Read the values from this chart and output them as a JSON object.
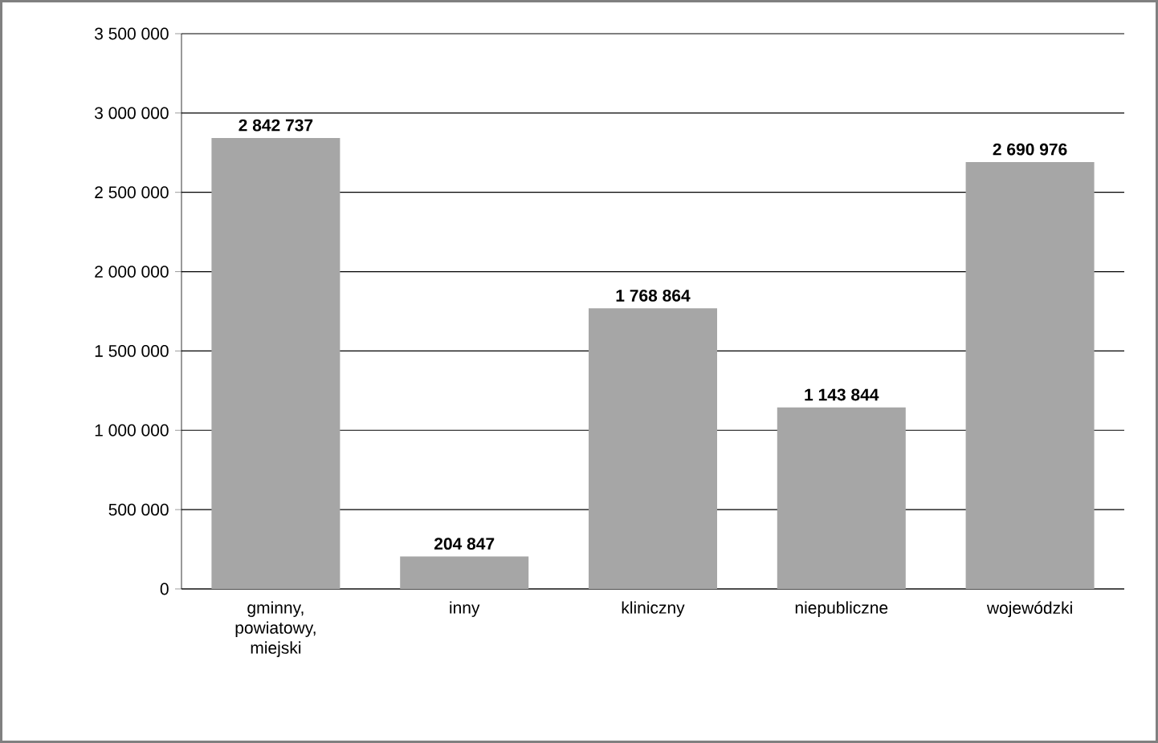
{
  "chart_data": {
    "type": "bar",
    "categories": [
      "gminny, powiatowy, miejski",
      "inny",
      "kliniczny",
      "niepubliczne",
      "wojewódzki"
    ],
    "values": [
      2842737,
      204847,
      1768864,
      1143844,
      2690976
    ],
    "color": "#a6a6a6",
    "value_labels": [
      "2 842 737",
      "204 847",
      "1 768 864",
      "1 143 844",
      "2 690 976"
    ],
    "ylim": [
      0,
      3500000
    ],
    "yticks": [
      {
        "value": 0,
        "label": "0"
      },
      {
        "value": 500000,
        "label": "500 000"
      },
      {
        "value": 1000000,
        "label": "1 000 000"
      },
      {
        "value": 1500000,
        "label": "1 500 000"
      },
      {
        "value": 2000000,
        "label": "2 000 000"
      },
      {
        "value": 2500000,
        "label": "2 500 000"
      },
      {
        "value": 3000000,
        "label": "3 000 000"
      },
      {
        "value": 3500000,
        "label": "3 500 000"
      }
    ],
    "grid": "y"
  }
}
